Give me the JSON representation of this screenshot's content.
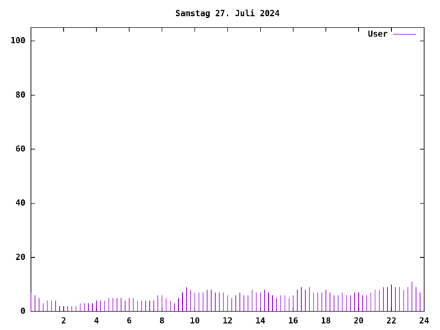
{
  "chart_data": {
    "type": "impulse",
    "title": "Samstag 27. Juli 2024",
    "series": [
      {
        "name": "User",
        "color": "#9400d3",
        "x": [
          0,
          0.25,
          0.5,
          0.75,
          1,
          1.25,
          1.5,
          1.75,
          2,
          2.25,
          2.5,
          2.75,
          3,
          3.25,
          3.5,
          3.75,
          4,
          4.25,
          4.5,
          4.75,
          5,
          5.25,
          5.5,
          5.75,
          6,
          6.25,
          6.5,
          6.75,
          7,
          7.25,
          7.5,
          7.75,
          8,
          8.25,
          8.5,
          8.75,
          9,
          9.25,
          9.5,
          9.75,
          10,
          10.25,
          10.5,
          10.75,
          11,
          11.25,
          11.5,
          11.75,
          12,
          12.25,
          12.5,
          12.75,
          13,
          13.25,
          13.5,
          13.75,
          14,
          14.25,
          14.5,
          14.75,
          15,
          15.25,
          15.5,
          15.75,
          16,
          16.25,
          16.5,
          16.75,
          17,
          17.25,
          17.5,
          17.75,
          18,
          18.25,
          18.5,
          18.75,
          19,
          19.25,
          19.5,
          19.75,
          20,
          20.25,
          20.5,
          20.75,
          21,
          21.25,
          21.5,
          21.75,
          22,
          22.25,
          22.5,
          22.75,
          23,
          23.25,
          23.5,
          23.75
        ],
        "values": [
          7,
          6,
          5,
          3,
          4,
          4,
          4,
          2,
          2,
          2,
          2,
          2,
          3,
          3,
          3,
          3,
          4,
          4,
          4,
          5,
          5,
          5,
          5,
          4,
          5,
          5,
          4,
          4,
          4,
          4,
          4,
          6,
          6,
          5,
          4,
          3,
          5,
          7,
          9,
          8,
          7,
          7,
          7,
          8,
          8,
          7,
          7,
          7,
          6,
          5,
          6,
          7,
          6,
          6,
          8,
          7,
          7,
          8,
          7,
          6,
          5,
          6,
          6,
          5,
          6,
          8,
          9,
          8,
          9,
          7,
          7,
          7,
          8,
          7,
          6,
          6,
          7,
          6,
          6,
          7,
          7,
          6,
          6,
          7,
          8,
          8,
          9,
          9,
          10,
          9,
          9,
          8,
          9,
          11,
          9,
          7
        ]
      }
    ],
    "xlim": [
      0,
      24
    ],
    "xticks": [
      2,
      4,
      6,
      8,
      10,
      12,
      14,
      16,
      18,
      20,
      22,
      24
    ],
    "ylim": [
      0,
      105
    ],
    "yticks": [
      0,
      20,
      40,
      60,
      80,
      100
    ],
    "legend": "top-right"
  }
}
